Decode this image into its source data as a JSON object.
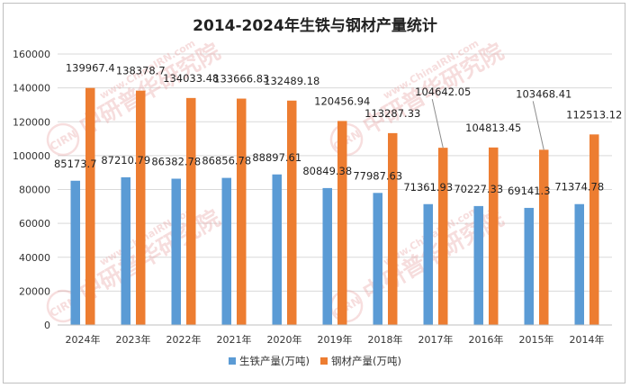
{
  "chart_data": {
    "type": "bar",
    "title": "2014-2024年生铁与钢材产量统计",
    "xlabel": "",
    "ylabel": "",
    "ylim": [
      0,
      160000
    ],
    "yticks": [
      "0",
      "20000",
      "40000",
      "60000",
      "80000",
      "100000",
      "120000",
      "140000",
      "160000"
    ],
    "grid": true,
    "legend_position": "bottom",
    "categories": [
      "2024年",
      "2023年",
      "2022年",
      "2021年",
      "2020年",
      "2019年",
      "2018年",
      "2017年",
      "2016年",
      "2015年",
      "2014年"
    ],
    "series": [
      {
        "name": "生铁产量(万吨)",
        "color": "#5b9bd5",
        "values": [
          85173.7,
          87210.79,
          86382.78,
          86856.78,
          88897.61,
          80849.38,
          77987.63,
          71361.93,
          70227.33,
          69141.3,
          71374.78
        ],
        "labels": [
          "85173.7",
          "87210.79",
          "86382.78",
          "86856.78",
          "88897.61",
          "80849.38",
          "77987.63",
          "71361.93",
          "70227.33",
          "69141.3",
          "71374.78"
        ]
      },
      {
        "name": "钢材产量(万吨)",
        "color": "#ed7d31",
        "values": [
          139967.4,
          138378.7,
          134033.48,
          133666.83,
          132489.18,
          120456.94,
          113287.33,
          104642.05,
          104813.45,
          103468.41,
          112513.12
        ],
        "labels": [
          "139967.4",
          "138378.7",
          "134033.48",
          "133666.83",
          "132489.18",
          "120456.94",
          "113287.33",
          "104642.05",
          "104813.45",
          "103468.41",
          "112513.12"
        ]
      }
    ]
  },
  "watermark": {
    "text_cn": "中研普华研究院",
    "text_en": "www.ChinaIRN.com",
    "logo": "CIRN",
    "color": "#e8a0a0"
  }
}
